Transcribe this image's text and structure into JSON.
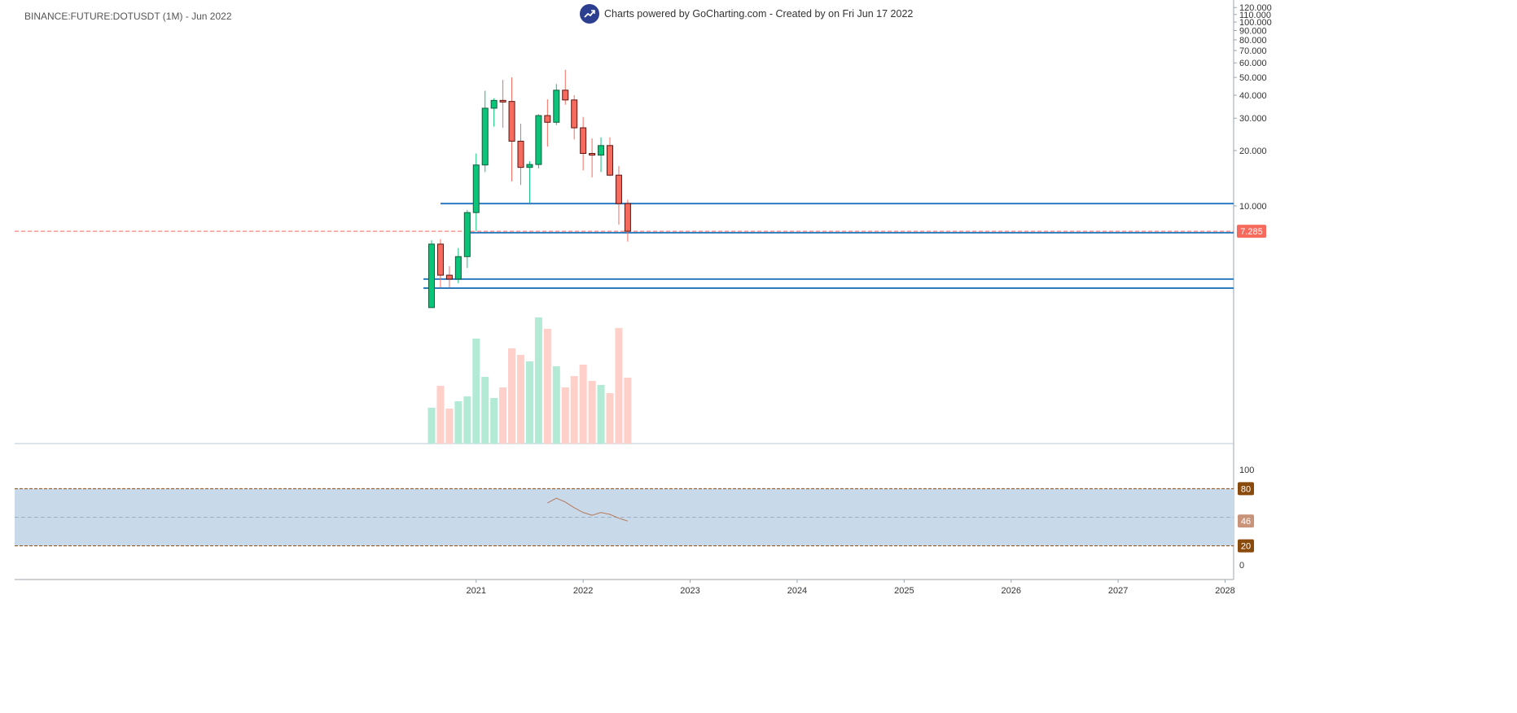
{
  "symbol_title": "BINANCE:FUTURE:DOTUSDT (1M) - Jun 2022",
  "header": {
    "text": "Charts powered by GoCharting.com - Created by  on Fri Jun 17 2022",
    "logo_icon": "chart-trend-icon"
  },
  "colors": {
    "up": "#0ac47a",
    "down": "#f76b5e",
    "up_volume": "#b3ead5",
    "down_volume": "#ffcfca",
    "level_line": "#2e7bbf",
    "rsi_band": "#c8d9ea",
    "rsi_line": "#b5795a",
    "rsi_marker": "#8a4a0c"
  },
  "chart_data": [
    {
      "type": "candlestick",
      "title": "BINANCE:FUTURE:DOTUSDT (1M)",
      "y_scale": "log",
      "y_ticks": [
        "120.000",
        "110.000",
        "100.000",
        "90.000",
        "80.000",
        "70.000",
        "60.000",
        "50.000",
        "40.000",
        "30.000",
        "20.000",
        "10.000"
      ],
      "y_tick_values": [
        120,
        110,
        100,
        90,
        80,
        70,
        60,
        50,
        40,
        30,
        20,
        10
      ],
      "x_ticks": [
        "2021",
        "2022",
        "2023",
        "2024",
        "2025",
        "2026",
        "2027",
        "2028"
      ],
      "first_period": "2020-08",
      "candles": [
        {
          "o": 2.8,
          "h": 6.5,
          "l": 2.8,
          "c": 6.2
        },
        {
          "o": 6.2,
          "h": 6.6,
          "l": 3.6,
          "c": 4.2
        },
        {
          "o": 4.2,
          "h": 4.7,
          "l": 3.6,
          "c": 4.0
        },
        {
          "o": 4.0,
          "h": 5.9,
          "l": 3.8,
          "c": 5.3
        },
        {
          "o": 5.3,
          "h": 9.5,
          "l": 4.6,
          "c": 9.2
        },
        {
          "o": 9.2,
          "h": 19.3,
          "l": 7.3,
          "c": 16.7
        },
        {
          "o": 16.7,
          "h": 42.3,
          "l": 15.3,
          "c": 34.0
        },
        {
          "o": 34.0,
          "h": 38.5,
          "l": 27.0,
          "c": 37.5
        },
        {
          "o": 37.5,
          "h": 48.5,
          "l": 26.6,
          "c": 37.0
        },
        {
          "o": 37.0,
          "h": 50.0,
          "l": 13.6,
          "c": 22.5
        },
        {
          "o": 22.5,
          "h": 28.0,
          "l": 13.0,
          "c": 16.2
        },
        {
          "o": 16.2,
          "h": 17.5,
          "l": 10.4,
          "c": 16.8
        },
        {
          "o": 16.8,
          "h": 31.5,
          "l": 16.0,
          "c": 31.0
        },
        {
          "o": 31.0,
          "h": 38.0,
          "l": 21.0,
          "c": 28.5
        },
        {
          "o": 28.5,
          "h": 46.0,
          "l": 27.5,
          "c": 42.6
        },
        {
          "o": 42.6,
          "h": 55.0,
          "l": 35.5,
          "c": 37.7
        },
        {
          "o": 37.7,
          "h": 40.0,
          "l": 23.0,
          "c": 26.6
        },
        {
          "o": 26.6,
          "h": 30.5,
          "l": 15.6,
          "c": 19.3
        },
        {
          "o": 19.3,
          "h": 23.3,
          "l": 14.3,
          "c": 18.9
        },
        {
          "o": 18.9,
          "h": 23.6,
          "l": 15.3,
          "c": 21.3
        },
        {
          "o": 21.3,
          "h": 23.6,
          "l": 14.5,
          "c": 14.7
        },
        {
          "o": 14.7,
          "h": 16.5,
          "l": 7.9,
          "c": 10.3
        },
        {
          "o": 10.3,
          "h": 10.8,
          "l": 6.4,
          "c": 7.285
        }
      ],
      "volume_relative": [
        44,
        71,
        43,
        52,
        58,
        129,
        82,
        56,
        69,
        117,
        109,
        101,
        155,
        141,
        95,
        69,
        83,
        97,
        77,
        72,
        62,
        142,
        81
      ],
      "horizontal_levels": [
        10.3,
        7.15,
        4.0,
        3.57
      ],
      "last_price": {
        "value": 7.285,
        "label": "7.285"
      }
    },
    {
      "type": "line",
      "title": "RSI",
      "y_ticks": [
        "100",
        "0"
      ],
      "ylim": [
        0,
        100
      ],
      "band": [
        20,
        80
      ],
      "band_labels": [
        "80",
        "20"
      ],
      "current": {
        "value": 46,
        "label": "46"
      },
      "points": [
        [
          13,
          65
        ],
        [
          14,
          70
        ],
        [
          15,
          66
        ],
        [
          16,
          60
        ],
        [
          17,
          55
        ],
        [
          18,
          52
        ],
        [
          19,
          55
        ],
        [
          20,
          53
        ],
        [
          21,
          49
        ],
        [
          22,
          46
        ]
      ]
    }
  ]
}
